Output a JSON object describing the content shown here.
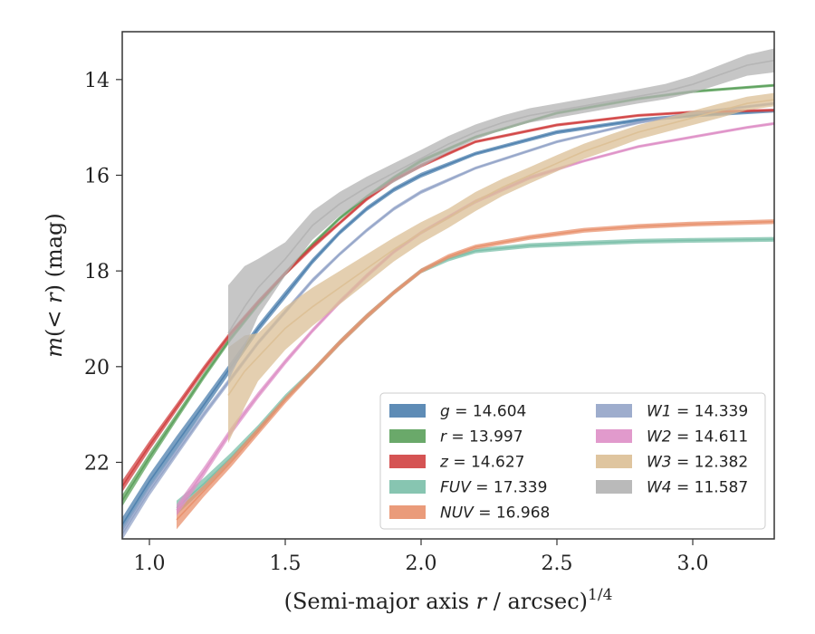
{
  "chart_data": {
    "type": "line",
    "xlabel": "(Semi-major axis r / arcsec)1/4",
    "xlabel_main": "(Semi-major axis ",
    "xlabel_var": "r",
    "xlabel_rest": " / arcsec)",
    "xlabel_sup": "1/4",
    "ylabel": "m(<r) (mag)",
    "ylabel_m": "m",
    "ylabel_open": "(",
    "ylabel_lt": "< ",
    "ylabel_r": "r",
    "ylabel_close": ") (mag)",
    "xlim": [
      0.9,
      3.3
    ],
    "ylim": [
      23.6,
      13.0
    ],
    "y_inverted": true,
    "grid": false,
    "legend_position": "lower-right",
    "legend_columns": 2,
    "x_ticks": [
      1.0,
      1.5,
      2.0,
      2.5,
      3.0
    ],
    "x_tick_labels": [
      "1.0",
      "1.5",
      "2.0",
      "2.5",
      "3.0"
    ],
    "y_ticks": [
      14,
      16,
      18,
      20,
      22
    ],
    "y_tick_labels": [
      "14",
      "16",
      "18",
      "20",
      "22"
    ],
    "series": [
      {
        "name": "g = 14.604",
        "band": "g",
        "value": "14.604",
        "color": "#4c7fae",
        "x": [
          0.9,
          1.0,
          1.1,
          1.2,
          1.3,
          1.4,
          1.5,
          1.6,
          1.7,
          1.8,
          1.9,
          2.0,
          2.2,
          2.5,
          2.8,
          3.0,
          3.3
        ],
        "y": [
          23.3,
          22.4,
          21.6,
          20.8,
          20.0,
          19.2,
          18.5,
          17.8,
          17.2,
          16.7,
          16.3,
          16.0,
          15.55,
          15.1,
          14.85,
          14.75,
          14.65
        ],
        "halfwidth": [
          0.15,
          0.15,
          0.15,
          0.12,
          0.1,
          0.08,
          0.08,
          0.06,
          0.05,
          0.05,
          0.05,
          0.05,
          0.04,
          0.04,
          0.04,
          0.04,
          0.04
        ]
      },
      {
        "name": "r = 13.997",
        "band": "r",
        "value": "13.997",
        "color": "#5aa05a",
        "x": [
          0.9,
          1.0,
          1.1,
          1.2,
          1.3,
          1.4,
          1.5,
          1.6,
          1.7,
          1.8,
          1.9,
          2.0,
          2.2,
          2.5,
          2.8,
          3.0,
          3.3
        ],
        "y": [
          22.8,
          21.9,
          21.05,
          20.2,
          19.4,
          18.7,
          18.05,
          17.45,
          16.9,
          16.45,
          16.05,
          15.7,
          15.2,
          14.7,
          14.4,
          14.25,
          14.12
        ],
        "halfwidth": [
          0.12,
          0.1,
          0.08,
          0.07,
          0.06,
          0.05,
          0.05,
          0.05,
          0.04,
          0.04,
          0.04,
          0.04,
          0.03,
          0.03,
          0.03,
          0.03,
          0.03
        ]
      },
      {
        "name": "z = 14.627",
        "band": "z",
        "value": "14.627",
        "color": "#d04040",
        "x": [
          0.9,
          1.0,
          1.1,
          1.2,
          1.3,
          1.4,
          1.5,
          1.6,
          1.7,
          1.8,
          1.9,
          2.0,
          2.2,
          2.5,
          2.8,
          3.0,
          3.3
        ],
        "y": [
          22.5,
          21.65,
          20.85,
          20.05,
          19.3,
          18.65,
          18.05,
          17.5,
          17.0,
          16.5,
          16.1,
          15.8,
          15.3,
          14.95,
          14.75,
          14.68,
          14.64
        ],
        "halfwidth": [
          0.12,
          0.1,
          0.08,
          0.07,
          0.06,
          0.05,
          0.05,
          0.05,
          0.04,
          0.04,
          0.04,
          0.04,
          0.03,
          0.03,
          0.03,
          0.03,
          0.03
        ]
      },
      {
        "name": "FUV = 17.339",
        "band": "FUV",
        "value": "17.339",
        "color": "#7abfa8",
        "x": [
          1.1,
          1.2,
          1.3,
          1.4,
          1.5,
          1.6,
          1.7,
          1.8,
          1.9,
          2.0,
          2.1,
          2.2,
          2.4,
          2.6,
          2.8,
          3.0,
          3.3
        ],
        "y": [
          22.95,
          22.45,
          21.9,
          21.3,
          20.65,
          20.1,
          19.5,
          18.95,
          18.45,
          18.0,
          17.75,
          17.58,
          17.47,
          17.42,
          17.38,
          17.36,
          17.34
        ],
        "halfwidth": [
          0.15,
          0.12,
          0.1,
          0.08,
          0.07,
          0.06,
          0.06,
          0.06,
          0.05,
          0.05,
          0.05,
          0.05,
          0.05,
          0.05,
          0.05,
          0.05,
          0.05
        ]
      },
      {
        "name": "NUV = 16.968",
        "band": "NUV",
        "value": "16.968",
        "color": "#e8906c",
        "x": [
          1.1,
          1.2,
          1.3,
          1.4,
          1.5,
          1.6,
          1.7,
          1.8,
          1.9,
          2.0,
          2.1,
          2.2,
          2.4,
          2.6,
          2.8,
          3.0,
          3.3
        ],
        "y": [
          23.2,
          22.6,
          22.0,
          21.35,
          20.7,
          20.1,
          19.5,
          18.95,
          18.45,
          18.0,
          17.7,
          17.5,
          17.3,
          17.15,
          17.07,
          17.02,
          16.97
        ],
        "halfwidth": [
          0.2,
          0.12,
          0.1,
          0.08,
          0.07,
          0.06,
          0.06,
          0.06,
          0.05,
          0.05,
          0.05,
          0.05,
          0.05,
          0.05,
          0.05,
          0.05,
          0.05
        ]
      },
      {
        "name": "W1 = 14.339",
        "band": "W1",
        "value": "14.339",
        "color": "#93a4c8",
        "x": [
          0.9,
          1.0,
          1.1,
          1.2,
          1.3,
          1.4,
          1.5,
          1.6,
          1.7,
          1.8,
          1.9,
          2.0,
          2.2,
          2.5,
          2.8,
          3.0,
          3.3
        ],
        "y": [
          23.5,
          22.6,
          21.8,
          21.0,
          20.25,
          19.5,
          18.85,
          18.2,
          17.65,
          17.15,
          16.7,
          16.35,
          15.85,
          15.3,
          14.9,
          14.7,
          14.5
        ],
        "halfwidth": [
          0.12,
          0.1,
          0.08,
          0.07,
          0.06,
          0.05,
          0.05,
          0.05,
          0.04,
          0.04,
          0.04,
          0.04,
          0.03,
          0.03,
          0.03,
          0.03,
          0.03
        ]
      },
      {
        "name": "W2 = 14.611",
        "band": "W2",
        "value": "14.611",
        "color": "#de8fc6",
        "x": [
          1.1,
          1.2,
          1.3,
          1.4,
          1.5,
          1.6,
          1.7,
          1.8,
          1.9,
          2.0,
          2.2,
          2.4,
          2.6,
          2.8,
          3.0,
          3.2,
          3.3
        ],
        "y": [
          23.0,
          22.2,
          21.35,
          20.6,
          19.9,
          19.25,
          18.65,
          18.1,
          17.6,
          17.2,
          16.55,
          16.05,
          15.7,
          15.4,
          15.2,
          15.0,
          14.92
        ],
        "halfwidth": [
          0.12,
          0.1,
          0.08,
          0.07,
          0.06,
          0.05,
          0.05,
          0.05,
          0.04,
          0.04,
          0.04,
          0.04,
          0.03,
          0.03,
          0.03,
          0.03,
          0.03
        ]
      },
      {
        "name": "W3 = 12.382",
        "band": "W3",
        "value": "12.382",
        "color": "#dbbf95",
        "x": [
          1.29,
          1.35,
          1.4,
          1.5,
          1.6,
          1.7,
          1.8,
          1.9,
          2.0,
          2.1,
          2.2,
          2.3,
          2.4,
          2.5,
          2.6,
          2.7,
          2.8,
          2.9,
          3.0,
          3.1,
          3.2,
          3.3
        ],
        "y": [
          20.6,
          20.1,
          19.8,
          19.2,
          18.75,
          18.35,
          17.95,
          17.55,
          17.2,
          16.9,
          16.55,
          16.25,
          16.0,
          15.75,
          15.5,
          15.3,
          15.1,
          14.95,
          14.8,
          14.65,
          14.5,
          14.42
        ],
        "halfwidth": [
          1.0,
          0.75,
          0.5,
          0.45,
          0.4,
          0.35,
          0.3,
          0.25,
          0.22,
          0.2,
          0.2,
          0.18,
          0.17,
          0.17,
          0.16,
          0.16,
          0.15,
          0.15,
          0.15,
          0.15,
          0.14,
          0.14
        ]
      },
      {
        "name": "W4 = 11.587",
        "band": "W4",
        "value": "11.587",
        "color": "#b3b3b3",
        "x": [
          1.29,
          1.35,
          1.4,
          1.5,
          1.6,
          1.7,
          1.8,
          1.9,
          2.0,
          2.1,
          2.2,
          2.3,
          2.4,
          2.5,
          2.6,
          2.7,
          2.8,
          2.9,
          3.0,
          3.1,
          3.2,
          3.3
        ],
        "y": [
          19.3,
          18.75,
          18.35,
          17.75,
          17.05,
          16.6,
          16.25,
          15.95,
          15.65,
          15.35,
          15.1,
          14.9,
          14.75,
          14.65,
          14.55,
          14.45,
          14.35,
          14.25,
          14.1,
          13.9,
          13.7,
          13.6
        ],
        "halfwidth": [
          1.0,
          0.85,
          0.6,
          0.35,
          0.3,
          0.25,
          0.22,
          0.2,
          0.18,
          0.17,
          0.16,
          0.15,
          0.15,
          0.15,
          0.15,
          0.15,
          0.15,
          0.16,
          0.18,
          0.2,
          0.22,
          0.25
        ]
      }
    ]
  }
}
